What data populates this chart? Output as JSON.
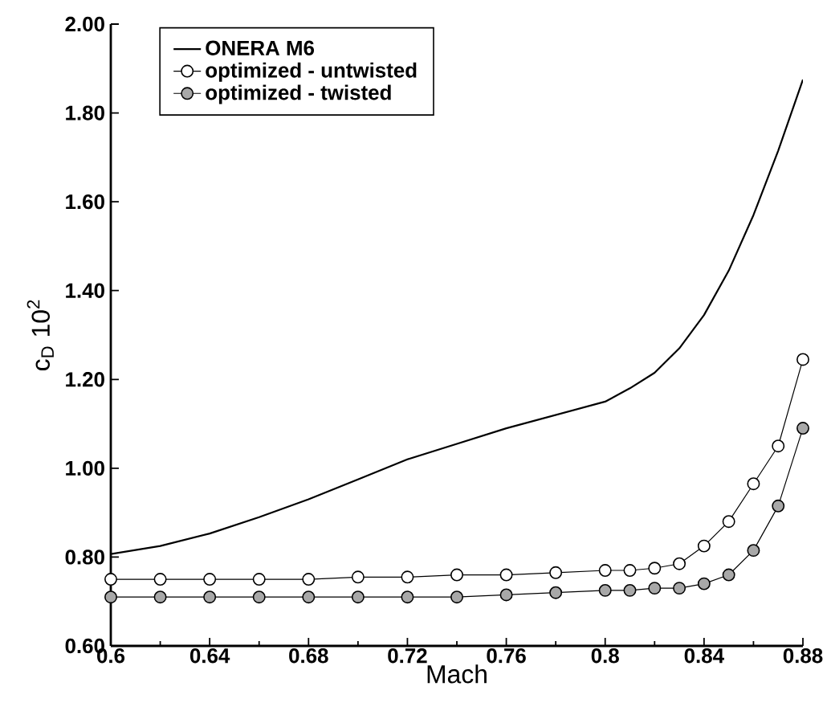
{
  "chart_data": {
    "type": "line",
    "xlabel": "Mach",
    "ylabel": "c$_{D}$ 10$^{2}$",
    "x": [
      0.6,
      0.62,
      0.64,
      0.66,
      0.68,
      0.7,
      0.72,
      0.74,
      0.76,
      0.78,
      0.8,
      0.81,
      0.82,
      0.83,
      0.84,
      0.85,
      0.86,
      0.87,
      0.88
    ],
    "series": [
      {
        "name": "ONERA M6",
        "color": "#000000",
        "marker": "none",
        "values": [
          0.807,
          0.825,
          0.853,
          0.89,
          0.93,
          0.975,
          1.02,
          1.055,
          1.09,
          1.12,
          1.15,
          1.18,
          1.215,
          1.27,
          1.345,
          1.445,
          1.57,
          1.715,
          1.875
        ]
      },
      {
        "name": "optimized - untwisted",
        "color": "#ffffff",
        "marker": "circle",
        "values": [
          0.75,
          0.75,
          0.75,
          0.75,
          0.75,
          0.755,
          0.755,
          0.76,
          0.76,
          0.765,
          0.77,
          0.77,
          0.775,
          0.785,
          0.825,
          0.88,
          0.965,
          1.05,
          1.245
        ]
      },
      {
        "name": "optimized - twisted",
        "color": "#a8a8a8",
        "marker": "circle",
        "values": [
          0.71,
          0.71,
          0.71,
          0.71,
          0.71,
          0.71,
          0.71,
          0.71,
          0.715,
          0.72,
          0.725,
          0.725,
          0.73,
          0.73,
          0.74,
          0.76,
          0.815,
          0.915,
          1.09
        ]
      }
    ],
    "xlim": [
      0.6,
      0.88
    ],
    "ylim": [
      0.6,
      2.0
    ],
    "xticks": [
      0.6,
      0.64,
      0.68,
      0.72,
      0.76,
      0.8,
      0.84,
      0.88
    ],
    "yticks": [
      {
        "value": 0.6,
        "label": "0.60"
      },
      {
        "value": 0.8,
        "label": "0.80"
      },
      {
        "value": 1.0,
        "label": "1.00"
      },
      {
        "value": 1.2,
        "label": "1.20"
      },
      {
        "value": 1.4,
        "label": "1.40"
      },
      {
        "value": 1.6,
        "label": "1.60"
      },
      {
        "value": 1.8,
        "label": "1.80"
      },
      {
        "value": 2.0,
        "label": "2.00"
      }
    ],
    "legend": "top left",
    "grid": false
  }
}
